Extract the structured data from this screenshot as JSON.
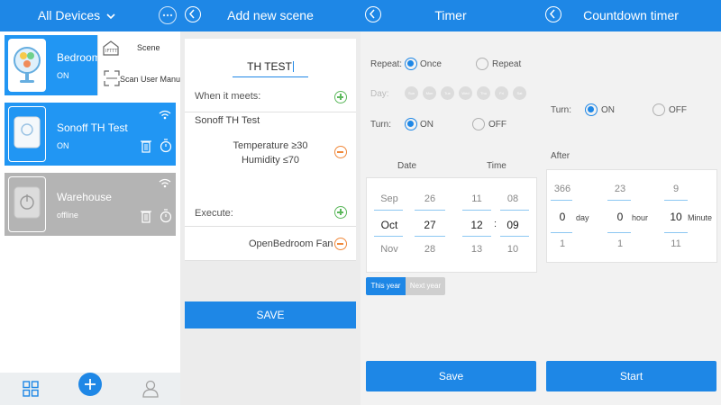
{
  "devices": {
    "header_title": "All Devices",
    "items": [
      {
        "name": "Bedroom",
        "status": "ON"
      },
      {
        "name": "Sonoff TH Test",
        "status": "ON"
      },
      {
        "name": "Warehouse",
        "status": "offline"
      }
    ],
    "popup": {
      "scene_label": "Scene",
      "scan_label": "Scan User Manual"
    },
    "colors": {
      "accent": "#1e87e6",
      "offline": "#b4b4b4"
    }
  },
  "scene": {
    "title": "Add new scene",
    "name_value": "TH TEST",
    "when_label": "When it meets:",
    "device_name": "Sonoff TH Test",
    "condition_temp": "Temperature ≥30",
    "condition_hum": "Humidity ≤70",
    "execute_label": "Execute:",
    "action": "OpenBedroom Fan",
    "save_label": "SAVE"
  },
  "timer": {
    "title": "Timer",
    "repeat_label": "Repeat:",
    "once_label": "Once",
    "repeat_option": "Repeat",
    "day_label": "Day:",
    "days": [
      "Sun",
      "Mon",
      "Tue",
      "Wed",
      "Thu",
      "Fri",
      "Sat"
    ],
    "turn_label": "Turn:",
    "on_label": "ON",
    "off_label": "OFF",
    "date_label": "Date",
    "time_label": "Time",
    "months": [
      "Sep",
      "Oct",
      "Nov"
    ],
    "day_values": [
      "26",
      "27",
      "28"
    ],
    "hours": [
      "11",
      "12",
      "13"
    ],
    "minutes": [
      "08",
      "09",
      "10"
    ],
    "colon": ":",
    "this_year": "This year",
    "next_year": "Next year",
    "save_label": "Save"
  },
  "countdown": {
    "title": "Countdown timer",
    "turn_label": "Turn:",
    "on_label": "ON",
    "off_label": "OFF",
    "after_label": "After",
    "days": [
      "366",
      "0",
      "1"
    ],
    "hours": [
      "23",
      "0",
      "1"
    ],
    "minutes": [
      "9",
      "10",
      "11"
    ],
    "day_unit": "day",
    "hour_unit": "hour",
    "minute_unit": "Minute",
    "start_label": "Start"
  }
}
